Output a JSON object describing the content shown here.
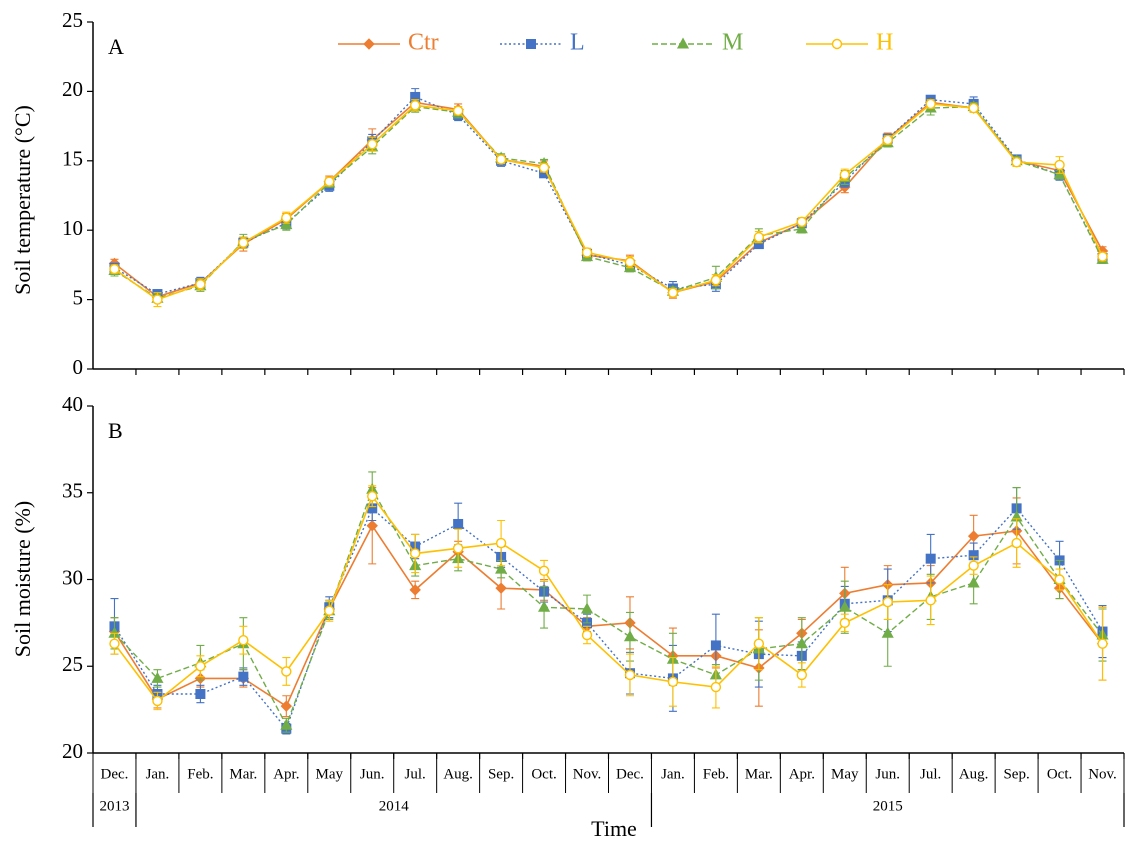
{
  "chart_data": [
    {
      "type": "line",
      "panel_label": "A",
      "title": "",
      "xlabel": "",
      "ylabel": "Soil temperature (°C)",
      "ylim": [
        0,
        25
      ],
      "yticks": [
        0,
        5,
        10,
        15,
        20,
        25
      ],
      "legend_position": "top",
      "grid": false,
      "series": [
        {
          "name": "Ctr",
          "color": "#ED7D31",
          "marker": "diamond",
          "line_style": "solid",
          "values": [
            7.6,
            5.2,
            6.2,
            9.0,
            10.8,
            13.5,
            16.5,
            19.2,
            18.7,
            15.1,
            14.6,
            8.2,
            7.8,
            5.5,
            6.3,
            9.1,
            10.5,
            13.1,
            16.6,
            19.2,
            18.8,
            15.0,
            14.3,
            8.5
          ],
          "errors": [
            0.3,
            0.4,
            0.4,
            0.5,
            0.4,
            0.4,
            0.8,
            0.5,
            0.4,
            0.3,
            0.4,
            0.4,
            0.4,
            0.4,
            0.5,
            0.4,
            0.3,
            0.4,
            0.4,
            0.3,
            0.3,
            0.4,
            0.4,
            0.3
          ]
        },
        {
          "name": "L",
          "color": "#4472C4",
          "marker": "square",
          "line_style": "dotted",
          "values": [
            7.3,
            5.4,
            6.2,
            9.1,
            10.5,
            13.2,
            16.4,
            19.6,
            18.3,
            15.0,
            14.1,
            8.3,
            7.5,
            5.8,
            6.1,
            9.0,
            10.5,
            13.5,
            16.6,
            19.4,
            19.1,
            15.1,
            14.0,
            8.0
          ],
          "errors": [
            0.3,
            0.3,
            0.4,
            0.4,
            0.4,
            0.4,
            0.5,
            0.6,
            0.4,
            0.4,
            0.3,
            0.3,
            0.3,
            0.5,
            0.5,
            0.3,
            0.3,
            0.4,
            0.3,
            0.3,
            0.5,
            0.3,
            0.4,
            0.3
          ]
        },
        {
          "name": "M",
          "color": "#70AD47",
          "marker": "triangle",
          "line_style": "dashed",
          "values": [
            7.1,
            5.1,
            6.0,
            9.2,
            10.4,
            13.4,
            16.0,
            18.9,
            18.5,
            15.2,
            14.8,
            8.1,
            7.3,
            5.6,
            6.6,
            9.6,
            10.1,
            13.8,
            16.3,
            18.8,
            18.9,
            15.0,
            14.0,
            7.9
          ],
          "errors": [
            0.4,
            0.3,
            0.4,
            0.5,
            0.4,
            0.3,
            0.5,
            0.4,
            0.4,
            0.3,
            0.3,
            0.3,
            0.3,
            0.3,
            0.8,
            0.5,
            0.3,
            0.5,
            0.3,
            0.5,
            0.3,
            0.3,
            0.3,
            0.3
          ]
        },
        {
          "name": "H",
          "color": "#FFC000",
          "marker": "circle-open",
          "line_style": "solid",
          "values": [
            7.2,
            5.0,
            6.1,
            9.1,
            10.9,
            13.5,
            16.2,
            19.0,
            18.6,
            15.1,
            14.5,
            8.4,
            7.7,
            5.5,
            6.4,
            9.5,
            10.6,
            14.0,
            16.5,
            19.1,
            18.8,
            14.9,
            14.7,
            8.1
          ],
          "errors": [
            0.3,
            0.5,
            0.4,
            0.4,
            0.4,
            0.3,
            0.5,
            0.4,
            0.3,
            0.3,
            0.3,
            0.3,
            0.4,
            0.3,
            0.4,
            0.4,
            0.3,
            0.4,
            0.3,
            0.3,
            0.3,
            0.3,
            0.6,
            0.3
          ]
        }
      ]
    },
    {
      "type": "line",
      "panel_label": "B",
      "title": "",
      "xlabel": "Time",
      "ylabel": "Soil moisture (%)",
      "ylim": [
        20,
        40
      ],
      "yticks": [
        20,
        25,
        30,
        35,
        40
      ],
      "grid": false,
      "series": [
        {
          "name": "Ctr",
          "color": "#ED7D31",
          "marker": "diamond",
          "line_style": "solid",
          "values": [
            27.0,
            23.1,
            24.3,
            24.3,
            22.7,
            28.3,
            33.1,
            29.4,
            31.6,
            29.5,
            29.4,
            27.3,
            27.5,
            25.6,
            25.6,
            24.9,
            26.9,
            29.2,
            29.7,
            29.8,
            32.5,
            32.8,
            29.5,
            26.3
          ],
          "errors": [
            0.8,
            0.5,
            0.5,
            0.5,
            0.6,
            0.5,
            2.2,
            0.5,
            0.6,
            1.2,
            0.6,
            0.5,
            1.5,
            1.6,
            0.7,
            2.2,
            0.8,
            1.5,
            1.1,
            1.0,
            1.2,
            1.9,
            0.6,
            2.1
          ]
        },
        {
          "name": "L",
          "color": "#4472C4",
          "marker": "square",
          "line_style": "dotted",
          "values": [
            27.3,
            23.4,
            23.4,
            24.4,
            21.4,
            28.4,
            34.1,
            31.9,
            33.2,
            31.3,
            29.3,
            27.5,
            24.6,
            24.3,
            26.2,
            25.7,
            25.6,
            28.6,
            28.8,
            31.2,
            31.4,
            34.1,
            31.1,
            27.0
          ],
          "errors": [
            1.6,
            0.5,
            0.5,
            0.5,
            0.3,
            0.6,
            0.7,
            0.7,
            1.2,
            0.6,
            0.6,
            0.5,
            1.2,
            1.9,
            1.8,
            1.9,
            0.8,
            1.0,
            1.8,
            1.4,
            0.7,
            1.2,
            1.1,
            1.5
          ]
        },
        {
          "name": "M",
          "color": "#70AD47",
          "marker": "triangle",
          "line_style": "dashed",
          "values": [
            26.9,
            24.3,
            25.2,
            26.3,
            21.6,
            28.2,
            35.2,
            30.8,
            31.2,
            30.6,
            28.4,
            28.3,
            26.7,
            25.4,
            24.5,
            26.0,
            26.3,
            28.4,
            26.9,
            29.0,
            29.8,
            33.6,
            30.0,
            26.8
          ],
          "errors": [
            0.9,
            0.5,
            1.0,
            1.5,
            0.4,
            0.5,
            1.0,
            0.6,
            0.7,
            0.5,
            1.2,
            0.8,
            1.4,
            1.5,
            0.6,
            1.8,
            1.5,
            1.5,
            1.9,
            1.3,
            1.2,
            1.7,
            1.1,
            1.5
          ]
        },
        {
          "name": "H",
          "color": "#FFC000",
          "marker": "circle-open",
          "line_style": "solid",
          "values": [
            26.3,
            23.0,
            25.0,
            26.5,
            24.7,
            28.2,
            34.8,
            31.5,
            31.8,
            32.1,
            30.5,
            26.8,
            24.5,
            24.1,
            23.8,
            26.3,
            24.5,
            27.5,
            28.7,
            28.8,
            30.8,
            32.1,
            30.0,
            26.3
          ],
          "errors": [
            0.6,
            0.5,
            0.6,
            0.8,
            0.8,
            0.6,
            0.6,
            1.1,
            1.1,
            1.3,
            0.6,
            0.5,
            1.2,
            1.4,
            1.2,
            1.5,
            0.7,
            0.5,
            1.0,
            1.4,
            0.5,
            1.4,
            0.6,
            2.1
          ]
        }
      ]
    }
  ],
  "x_axis": {
    "months": [
      "Dec.",
      "Jan.",
      "Feb.",
      "Mar.",
      "Apr.",
      "May",
      "Jun.",
      "Jul.",
      "Aug.",
      "Sep.",
      "Oct.",
      "Nov.",
      "Dec.",
      "Jan.",
      "Feb.",
      "Mar.",
      "Apr.",
      "May",
      "Jun.",
      "Jul.",
      "Aug.",
      "Sep.",
      "Oct.",
      "Nov."
    ],
    "years": [
      {
        "label": "2013",
        "start": 0,
        "end": 0
      },
      {
        "label": "2014",
        "start": 1,
        "end": 12
      },
      {
        "label": "2015",
        "start": 13,
        "end": 23
      }
    ],
    "title": "Time"
  }
}
